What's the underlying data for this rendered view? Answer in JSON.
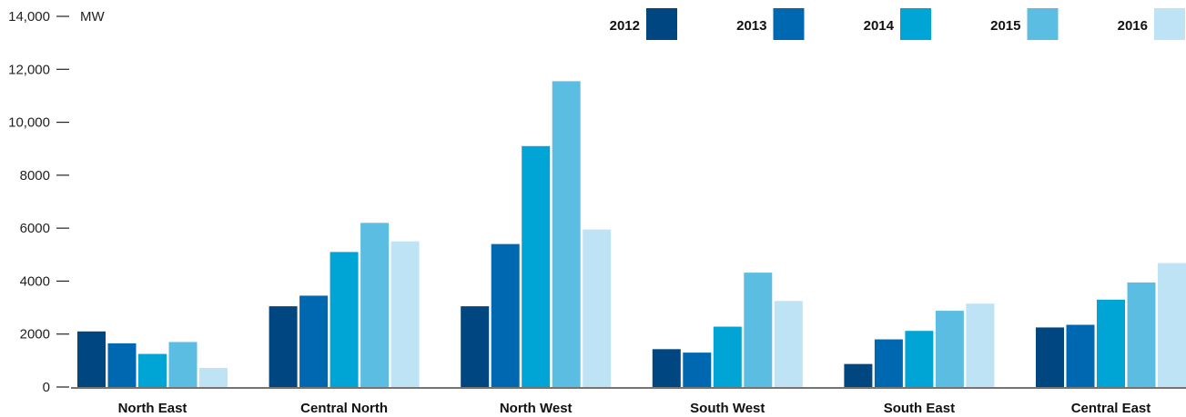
{
  "chart_data": {
    "type": "bar",
    "ylabel": "MW",
    "ylim": [
      0,
      14000
    ],
    "yticks": [
      0,
      2000,
      4000,
      6000,
      8000,
      10000,
      12000,
      14000
    ],
    "ytick_labels": [
      "0",
      "2000",
      "4000",
      "6000",
      "8000",
      "10,000",
      "12,000",
      "14,000"
    ],
    "categories": [
      "North East",
      "Central North",
      "North West",
      "South West",
      "South East",
      "Central East"
    ],
    "series": [
      {
        "name": "2012",
        "color": "#004680",
        "values": [
          2100,
          3050,
          3050,
          1430,
          870,
          2250
        ]
      },
      {
        "name": "2013",
        "color": "#0068b0",
        "values": [
          1650,
          3450,
          5400,
          1300,
          1800,
          2350
        ]
      },
      {
        "name": "2014",
        "color": "#00a5d6",
        "values": [
          1250,
          5100,
          9100,
          2280,
          2120,
          3300
        ]
      },
      {
        "name": "2015",
        "color": "#5cbde2",
        "values": [
          1700,
          6200,
          11550,
          4320,
          2880,
          3950
        ]
      },
      {
        "name": "2016",
        "color": "#bde3f4",
        "values": [
          720,
          5500,
          5950,
          3250,
          3150,
          4680
        ]
      }
    ],
    "legend_position": "top-right",
    "grid": false
  }
}
